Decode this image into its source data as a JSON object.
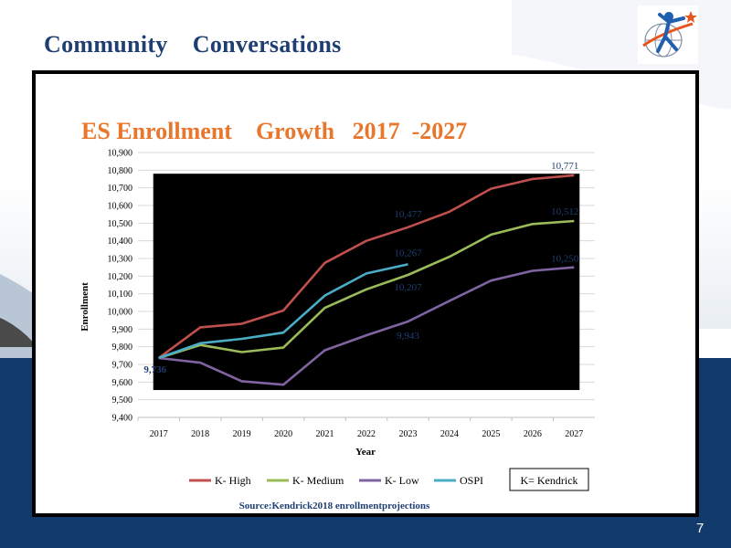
{
  "slide": {
    "title": "Community    Conversations",
    "page_number": "7",
    "logo": {
      "icon": "star-figure-globe-icon",
      "accent": "#e8541b"
    }
  },
  "chart_data": {
    "type": "line",
    "title": "ES Enrollment    Growth   2017  -2027",
    "xlabel": "Year",
    "ylabel": "Enrollment",
    "ylim": [
      9400,
      10900
    ],
    "yticks": [
      9400,
      9500,
      9600,
      9700,
      9800,
      9900,
      10000,
      10100,
      10200,
      10300,
      10400,
      10500,
      10600,
      10700,
      10800,
      10900
    ],
    "ytick_labels": [
      "9,400",
      "9,500",
      "9,600",
      "9,700",
      "9,800",
      "9,900",
      "10,000",
      "10,100",
      "10,200",
      "10,300",
      "10,400",
      "10,500",
      "10,600",
      "10,700",
      "10,800",
      "10,900"
    ],
    "categories": [
      "2017",
      "2018",
      "2019",
      "2020",
      "2021",
      "2022",
      "2023",
      "2024",
      "2025",
      "2026",
      "2027"
    ],
    "grid": true,
    "series": [
      {
        "name": "K- High",
        "color": "#c0504d",
        "values": [
          9736,
          9910,
          9930,
          10005,
          10275,
          10400,
          10477,
          10565,
          10695,
          10750,
          10771
        ]
      },
      {
        "name": "K- Medium",
        "color": "#9bbb59",
        "values": [
          9736,
          9810,
          9770,
          9795,
          10020,
          10125,
          10207,
          10310,
          10435,
          10495,
          10512
        ]
      },
      {
        "name": "K- Low",
        "color": "#8064a2",
        "values": [
          9736,
          9710,
          9605,
          9585,
          9780,
          9865,
          9943,
          10060,
          10175,
          10230,
          10250
        ]
      },
      {
        "name": "OSPI",
        "color": "#4bacc6",
        "values": [
          9736,
          9820,
          9845,
          9880,
          10090,
          10215,
          10267,
          null,
          null,
          null,
          null
        ]
      }
    ],
    "data_labels": [
      {
        "series": "start",
        "x": "2017",
        "y": 9736,
        "text": "9,736"
      },
      {
        "series": "K- High",
        "x": "2023",
        "y": 10477,
        "text": "10,477"
      },
      {
        "series": "OSPI",
        "x": "2023",
        "y": 10267,
        "text": "10,267"
      },
      {
        "series": "K- Medium",
        "x": "2023",
        "y": 10207,
        "text": "10,207"
      },
      {
        "series": "K- Low",
        "x": "2023",
        "y": 9943,
        "text": "9,943"
      },
      {
        "series": "K- High",
        "x": "2027",
        "y": 10771,
        "text": "10,771"
      },
      {
        "series": "K- Medium",
        "x": "2027",
        "y": 10512,
        "text": "10,512"
      },
      {
        "series": "K- Low",
        "x": "2027",
        "y": 10250,
        "text": "10,250"
      }
    ],
    "legend_note": "K= Kendrick",
    "source": "Source:Kendrick2018 enrollmentprojections",
    "legend_placement": "bottom",
    "plot_fill": "#000000",
    "label_color": "#1f3f73"
  }
}
